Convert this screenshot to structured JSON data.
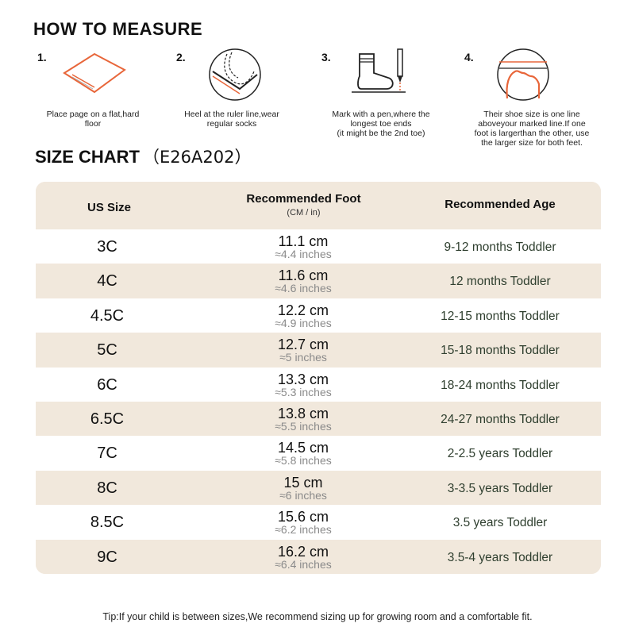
{
  "how_to_measure": {
    "title": "HOW TO MEASURE",
    "steps": [
      {
        "number": "1.",
        "icon": "paper-sheet-icon",
        "text": "Place page on a flat,hard floor"
      },
      {
        "number": "2.",
        "icon": "heel-on-ruler-icon",
        "text": "Heel at the ruler line,wear regular socks"
      },
      {
        "number": "3.",
        "icon": "sock-and-pen-icon",
        "text": "Mark with a pen,where the longest toe ends\n(it might be the 2nd toe)"
      },
      {
        "number": "4.",
        "icon": "toe-over-line-icon",
        "text": "Their shoe size is one line aboveyour marked line.If one foot is largerthan the other, use the larger size for both feet."
      }
    ]
  },
  "size_chart": {
    "title": "SIZE CHART",
    "code": "（E26A202）",
    "headers": {
      "size": "US Size",
      "foot": "Recommended Foot",
      "foot_unit": "(CM / in)",
      "age": "Recommended Age"
    },
    "rows": [
      {
        "size": "3C",
        "cm": "11.1 cm",
        "inches": "≈4.4 inches",
        "age": "9-12 months Toddler"
      },
      {
        "size": "4C",
        "cm": "11.6 cm",
        "inches": "≈4.6 inches",
        "age": "12 months Toddler"
      },
      {
        "size": "4.5C",
        "cm": "12.2 cm",
        "inches": "≈4.9 inches",
        "age": "12-15 months Toddler"
      },
      {
        "size": "5C",
        "cm": "12.7 cm",
        "inches": "≈5 inches",
        "age": "15-18 months Toddler"
      },
      {
        "size": "6C",
        "cm": "13.3 cm",
        "inches": "≈5.3 inches",
        "age": "18-24 months Toddler"
      },
      {
        "size": "6.5C",
        "cm": "13.8 cm",
        "inches": "≈5.5 inches",
        "age": "24-27 months Toddler"
      },
      {
        "size": "7C",
        "cm": "14.5 cm",
        "inches": "≈5.8 inches",
        "age": "2-2.5 years Toddler"
      },
      {
        "size": "8C",
        "cm": "15 cm",
        "inches": "≈6 inches",
        "age": "3-3.5 years Toddler"
      },
      {
        "size": "8.5C",
        "cm": "15.6 cm",
        "inches": "≈6.2 inches",
        "age": "3.5 years Toddler"
      },
      {
        "size": "9C",
        "cm": "16.2 cm",
        "inches": "≈6.4 inches",
        "age": "3.5-4 years Toddler"
      }
    ]
  },
  "tip": "Tip:If your child is between sizes,We recommend sizing up for growing room and a comfortable fit.",
  "colors": {
    "beige": "#f1e8dc",
    "accent_orange": "#e8663a",
    "age_text": "#2f3f2f",
    "inch_text": "#8a8a8a"
  }
}
